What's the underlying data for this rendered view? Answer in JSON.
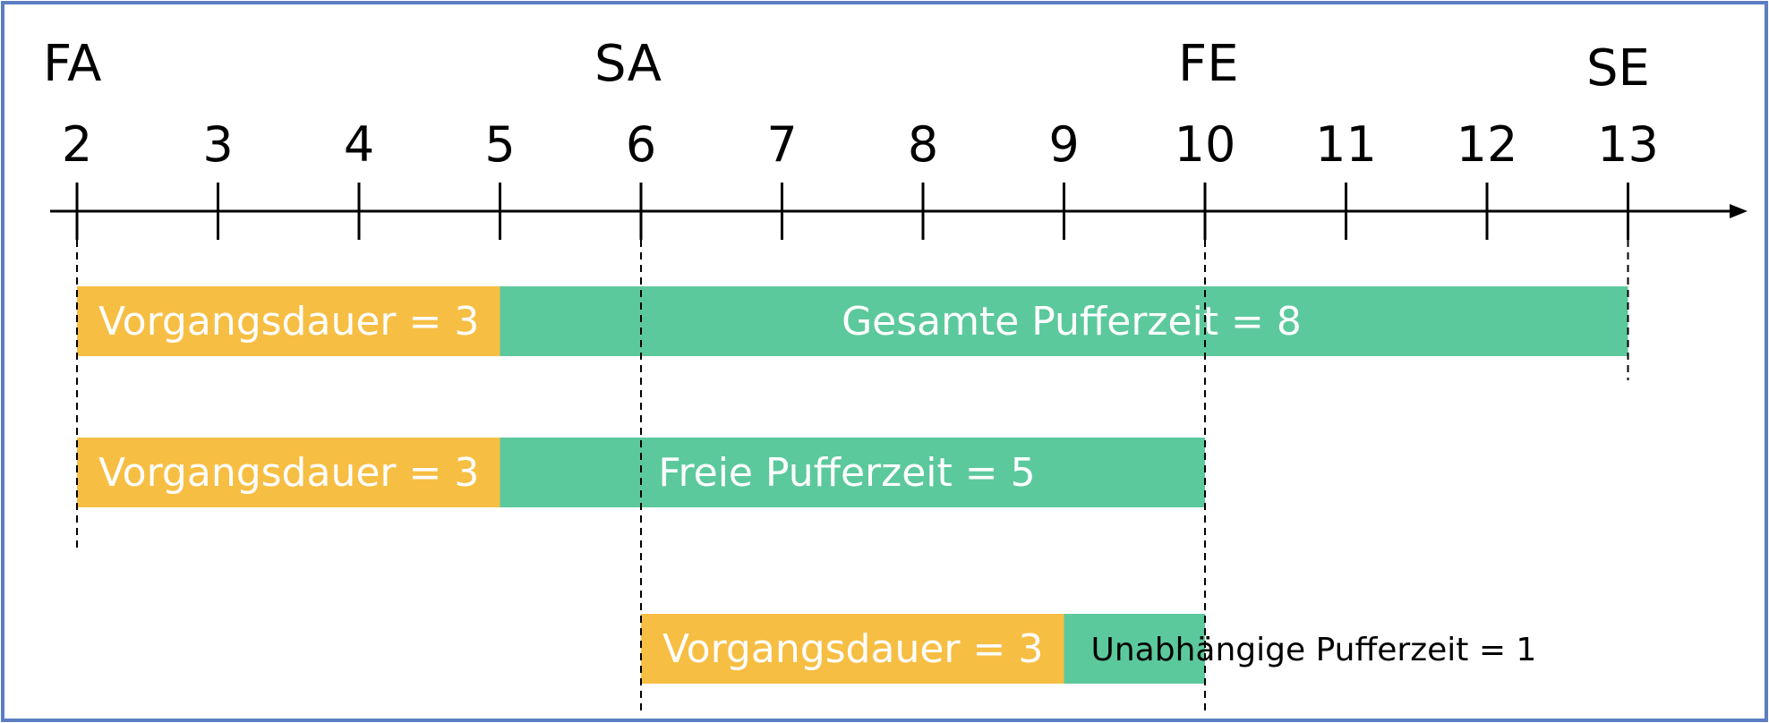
{
  "milestones": {
    "fa": "FA",
    "sa": "SA",
    "fe": "FE",
    "se": "SE"
  },
  "axis": {
    "ticks": [
      2,
      3,
      4,
      5,
      6,
      7,
      8,
      9,
      10,
      11,
      12,
      13
    ]
  },
  "rows": [
    {
      "duration_label": "Vorgangsdauer = 3",
      "buffer_label": "Gesamte Pufferzeit = 8",
      "start": 2,
      "duration": 3,
      "buffer": 8
    },
    {
      "duration_label": "Vorgangsdauer = 3",
      "buffer_label": "Freie Pufferzeit = 5",
      "start": 2,
      "duration": 3,
      "buffer": 5
    },
    {
      "duration_label": "Vorgangsdauer = 3",
      "buffer_label": "Unabhängige Pufferzeit = 1",
      "start": 6,
      "duration": 3,
      "buffer": 1
    }
  ],
  "colors": {
    "duration": "#F6BE43",
    "buffer": "#5CC99C",
    "frame": "#5B7EC2",
    "axis": "#000000"
  }
}
